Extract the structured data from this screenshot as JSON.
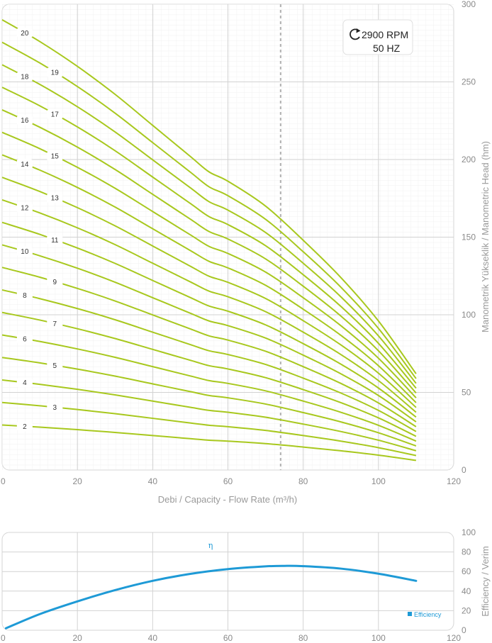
{
  "chart_data": [
    {
      "type": "line",
      "xlabel": "Debi / Capacity  - Flow Rate (m³/h)",
      "ylabel": "Manometrik Yükseklik  / Manometric Head (hm)",
      "xlim": [
        0,
        120
      ],
      "ylim": [
        0,
        300
      ],
      "x_ticks": [
        "0",
        "20",
        "40",
        "60",
        "80",
        "100",
        "120"
      ],
      "y_ticks": [
        "0",
        "50",
        "100",
        "150",
        "200",
        "250",
        "300"
      ],
      "grid": true,
      "speed_box": {
        "rpm": "2900 RPM",
        "freq": "50 HZ"
      },
      "duty_line_x": 74,
      "line_color": "#a8c81e",
      "base_curve_x": [
        0,
        10,
        20,
        30,
        40,
        50,
        55,
        60,
        70,
        80,
        90,
        100,
        110
      ],
      "base_curve_unit_head": [
        14.5,
        13.8,
        13.0,
        12.1,
        11.1,
        10.1,
        9.6,
        9.3,
        8.5,
        7.4,
        6.2,
        4.8,
        3.1
      ],
      "series": [
        {
          "label": "2",
          "stages": 2
        },
        {
          "label": "3",
          "stages": 3
        },
        {
          "label": "4",
          "stages": 4
        },
        {
          "label": "5",
          "stages": 5
        },
        {
          "label": "6",
          "stages": 6
        },
        {
          "label": "7",
          "stages": 7
        },
        {
          "label": "8",
          "stages": 8
        },
        {
          "label": "9",
          "stages": 9
        },
        {
          "label": "10",
          "stages": 10
        },
        {
          "label": "11",
          "stages": 11
        },
        {
          "label": "12",
          "stages": 12
        },
        {
          "label": "13",
          "stages": 13
        },
        {
          "label": "14",
          "stages": 14
        },
        {
          "label": "15",
          "stages": 15
        },
        {
          "label": "16",
          "stages": 16
        },
        {
          "label": "17",
          "stages": 17
        },
        {
          "label": "18",
          "stages": 18
        },
        {
          "label": "19",
          "stages": 19
        },
        {
          "label": "20",
          "stages": 20
        }
      ]
    },
    {
      "type": "line",
      "ylabel": "Efficiency / Verim",
      "xlim": [
        0,
        120
      ],
      "ylim": [
        0,
        100
      ],
      "x_ticks": [
        "0",
        "20",
        "40",
        "60",
        "80",
        "100",
        "120"
      ],
      "y_ticks": [
        "0",
        "20",
        "40",
        "60",
        "80",
        "100"
      ],
      "grid": true,
      "curve_label": "η",
      "legend": "Efficiency",
      "legend_placement": "bottom-right",
      "line_color": "#1e9ad6",
      "x": [
        1,
        10,
        20,
        30,
        40,
        50,
        60,
        70,
        75,
        80,
        90,
        100,
        110
      ],
      "y": [
        2,
        16.5,
        29.5,
        41.0,
        50.5,
        57.6,
        62.5,
        65.3,
        65.8,
        65.5,
        63.0,
        57.8,
        50.5
      ]
    }
  ]
}
